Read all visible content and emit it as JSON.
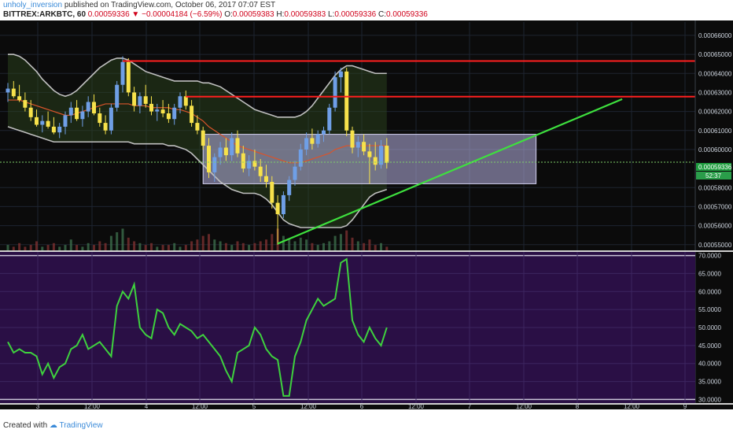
{
  "header": {
    "user": "unholy_inversion",
    "published": "published on TradingView.com, October 06, 2017 07:07 EST",
    "symbol": "BITTREX:ARKBTC, 60",
    "last": "0.00059336",
    "change": "−0.00004184 (−6.59%)",
    "o_label": "O:",
    "o": "0.00059383",
    "h_label": "H:",
    "h": "0.00059383",
    "l_label": "L:",
    "l": "0.00059336",
    "c_label": "C:",
    "c": "0.00059336"
  },
  "footer": {
    "created": "Created with",
    "brand": "TradingView"
  },
  "price_badge": {
    "price": "0.00059336",
    "timer": "52:37"
  },
  "colors": {
    "background": "#0b0b0b",
    "bull": "#6f9fe6",
    "bear": "#f7e24b",
    "bands": "#bfbfbf",
    "basis": "#d9542b",
    "resistance": "#ff1f1f",
    "trend": "#3ee03e",
    "zone": "#b9b4e6",
    "rsi_panel": "#2a0f45",
    "rsi_line": "#3ed13e",
    "price_badge": "#1f9d3f"
  },
  "chart_data": [
    {
      "type": "candlestick",
      "x_ticks": [
        "3",
        "12:00",
        "4",
        "12:00",
        "5",
        "12:00",
        "6",
        "12:00",
        "7",
        "12:00",
        "8",
        "12:00",
        "9"
      ],
      "y_ticks": [
        "0.00066000",
        "0.00065000",
        "0.00064000",
        "0.00063000",
        "0.00062000",
        "0.00061000",
        "0.00060000",
        "0.00058000",
        "0.00057000",
        "0.00056000",
        "0.00055000"
      ],
      "ylim": [
        0.000547,
        0.000667
      ],
      "ohlc": [
        [
          0.00063,
          0.000635,
          0.000625,
          0.000632
        ],
        [
          0.000632,
          0.000636,
          0.000627,
          0.000628
        ],
        [
          0.000628,
          0.000634,
          0.000625,
          0.000626
        ],
        [
          0.000626,
          0.00063,
          0.00062,
          0.000622
        ],
        [
          0.000622,
          0.000626,
          0.000615,
          0.000617
        ],
        [
          0.000617,
          0.000621,
          0.000612,
          0.000613
        ],
        [
          0.000613,
          0.000618,
          0.000609,
          0.000615
        ],
        [
          0.000615,
          0.00062,
          0.000611,
          0.000612
        ],
        [
          0.000612,
          0.000617,
          0.000608,
          0.000609
        ],
        [
          0.000609,
          0.000614,
          0.000606,
          0.000612
        ],
        [
          0.000612,
          0.00062,
          0.000608,
          0.000618
        ],
        [
          0.000618,
          0.000625,
          0.000614,
          0.000622
        ],
        [
          0.000622,
          0.000626,
          0.000615,
          0.000616
        ],
        [
          0.000616,
          0.000623,
          0.000612,
          0.00062
        ],
        [
          0.00062,
          0.000628,
          0.000617,
          0.000625
        ],
        [
          0.000625,
          0.000629,
          0.000618,
          0.000619
        ],
        [
          0.000619,
          0.000622,
          0.000612,
          0.000614
        ],
        [
          0.000614,
          0.000618,
          0.000608,
          0.00061
        ],
        [
          0.00061,
          0.000624,
          0.000608,
          0.000622
        ],
        [
          0.000622,
          0.000636,
          0.00062,
          0.000634
        ],
        [
          0.000634,
          0.000649,
          0.00063,
          0.000646
        ],
        [
          0.000646,
          0.000648,
          0.000628,
          0.00063
        ],
        [
          0.00063,
          0.000633,
          0.00062,
          0.000623
        ],
        [
          0.000623,
          0.00063,
          0.000619,
          0.000628
        ],
        [
          0.000628,
          0.000634,
          0.000622,
          0.000624
        ],
        [
          0.000624,
          0.000628,
          0.000618,
          0.00062
        ],
        [
          0.00062,
          0.000624,
          0.000615,
          0.000621
        ],
        [
          0.000621,
          0.000626,
          0.000617,
          0.000619
        ],
        [
          0.000619,
          0.000624,
          0.000614,
          0.000616
        ],
        [
          0.000616,
          0.000624,
          0.000613,
          0.000622
        ],
        [
          0.000622,
          0.00063,
          0.000619,
          0.000628
        ],
        [
          0.000628,
          0.000631,
          0.000621,
          0.000623
        ],
        [
          0.000623,
          0.000626,
          0.000612,
          0.000614
        ],
        [
          0.000614,
          0.000618,
          0.000608,
          0.00061
        ],
        [
          0.00061,
          0.000612,
          0.0006,
          0.000602
        ],
        [
          0.000602,
          0.000606,
          0.000585,
          0.000588
        ],
        [
          0.000588,
          0.000598,
          0.000583,
          0.000596
        ],
        [
          0.000596,
          0.000604,
          0.000592,
          0.000601
        ],
        [
          0.000601,
          0.000606,
          0.000594,
          0.000597
        ],
        [
          0.000597,
          0.000609,
          0.000594,
          0.000606
        ],
        [
          0.000606,
          0.00061,
          0.000596,
          0.000598
        ],
        [
          0.000598,
          0.000602,
          0.000588,
          0.00059
        ],
        [
          0.00059,
          0.000597,
          0.000586,
          0.000594
        ],
        [
          0.000594,
          0.0006,
          0.000589,
          0.000591
        ],
        [
          0.000591,
          0.000595,
          0.000583,
          0.000586
        ],
        [
          0.000586,
          0.000592,
          0.00058,
          0.000583
        ],
        [
          0.000583,
          0.000586,
          0.000569,
          0.000572
        ],
        [
          0.000572,
          0.000576,
          0.00055,
          0.000566
        ],
        [
          0.000566,
          0.000578,
          0.000564,
          0.000576
        ],
        [
          0.000576,
          0.000586,
          0.000573,
          0.000584
        ],
        [
          0.000584,
          0.000594,
          0.000581,
          0.000591
        ],
        [
          0.000591,
          0.000603,
          0.000589,
          0.0006
        ],
        [
          0.0006,
          0.000609,
          0.000597,
          0.000606
        ],
        [
          0.000606,
          0.000611,
          0.0006,
          0.000603
        ],
        [
          0.000603,
          0.00061,
          0.000601,
          0.000608
        ],
        [
          0.000608,
          0.000612,
          0.000604,
          0.00061
        ],
        [
          0.00061,
          0.000624,
          0.000608,
          0.000622
        ],
        [
          0.000622,
          0.000641,
          0.00062,
          0.000638
        ],
        [
          0.000638,
          0.000643,
          0.00063,
          0.000641
        ],
        [
          0.000641,
          0.000643,
          0.000607,
          0.00061
        ],
        [
          0.00061,
          0.000612,
          0.000598,
          0.000601
        ],
        [
          0.000601,
          0.000607,
          0.000596,
          0.000604
        ],
        [
          0.000604,
          0.000608,
          0.000597,
          0.000599
        ],
        [
          0.000599,
          0.000603,
          0.000582,
          0.000596
        ],
        [
          0.000596,
          0.000604,
          0.000589,
          0.000592
        ],
        [
          0.000592,
          0.000605,
          0.00059,
          0.000602
        ],
        [
          0.000602,
          0.000606,
          0.00059,
          0.000593
        ]
      ],
      "bollinger_upper": [
        0.00065,
        0.00065,
        0.000649,
        0.000647,
        0.000644,
        0.000641,
        0.000637,
        0.000634,
        0.000631,
        0.000629,
        0.000628,
        0.000629,
        0.000631,
        0.000634,
        0.000637,
        0.00064,
        0.000643,
        0.000645,
        0.000647,
        0.000648,
        0.000648,
        0.000647,
        0.000645,
        0.000643,
        0.000641,
        0.00064,
        0.000639,
        0.000638,
        0.000637,
        0.000636,
        0.000636,
        0.000636,
        0.000636,
        0.000636,
        0.000635,
        0.000635,
        0.000634,
        0.000633,
        0.000631,
        0.000629,
        0.000627,
        0.000625,
        0.000623,
        0.000621,
        0.00062,
        0.000619,
        0.000618,
        0.000617,
        0.000617,
        0.000617,
        0.000617,
        0.000618,
        0.00062,
        0.000623,
        0.000627,
        0.000631,
        0.000635,
        0.000639,
        0.000642,
        0.000644,
        0.000644,
        0.000643,
        0.000642,
        0.000641,
        0.00064,
        0.00064,
        0.00064
      ],
      "bollinger_basis": [
        0.000626,
        0.000626,
        0.000626,
        0.000625,
        0.000624,
        0.000623,
        0.000622,
        0.000621,
        0.00062,
        0.000619,
        0.000618,
        0.000618,
        0.000619,
        0.00062,
        0.000621,
        0.000622,
        0.000623,
        0.000624,
        0.000624,
        0.000624,
        0.000624,
        0.000624,
        0.000623,
        0.000623,
        0.000623,
        0.000622,
        0.000622,
        0.000622,
        0.000622,
        0.000621,
        0.000621,
        0.00062,
        0.000619,
        0.000617,
        0.000615,
        0.000612,
        0.00061,
        0.000608,
        0.000606,
        0.000604,
        0.000602,
        0.000601,
        0.0006,
        0.000599,
        0.000598,
        0.000597,
        0.000596,
        0.000595,
        0.000594,
        0.000593,
        0.000593,
        0.000593,
        0.000594,
        0.000595,
        0.000596,
        0.000597,
        0.000598,
        0.0006,
        0.000601,
        0.000602,
        0.000602,
        0.000602,
        0.000602,
        0.000602,
        0.000602,
        0.000602,
        0.000602
      ],
      "bollinger_lower": [
        0.000612,
        0.000611,
        0.00061,
        0.000609,
        0.000608,
        0.000607,
        0.000606,
        0.000605,
        0.000604,
        0.000604,
        0.000604,
        0.000604,
        0.000604,
        0.000604,
        0.000604,
        0.000604,
        0.000604,
        0.000604,
        0.000604,
        0.000604,
        0.000604,
        0.000604,
        0.000603,
        0.000603,
        0.000603,
        0.000603,
        0.000603,
        0.000603,
        0.000602,
        0.000602,
        0.000601,
        0.0006,
        0.000598,
        0.000595,
        0.000592,
        0.000589,
        0.000586,
        0.000583,
        0.000581,
        0.000579,
        0.000578,
        0.000577,
        0.000577,
        0.000577,
        0.000576,
        0.000574,
        0.000571,
        0.000567,
        0.000563,
        0.000561,
        0.00056,
        0.000559,
        0.000559,
        0.000559,
        0.000559,
        0.000559,
        0.000559,
        0.000559,
        0.000559,
        0.00056,
        0.000563,
        0.000567,
        0.000571,
        0.000575,
        0.000577,
        0.000578,
        0.000579
      ],
      "volume": [
        3,
        2,
        4,
        2,
        3,
        5,
        2,
        3,
        4,
        2,
        3,
        6,
        3,
        2,
        4,
        3,
        5,
        4,
        8,
        10,
        12,
        7,
        5,
        4,
        3,
        4,
        2,
        3,
        3,
        4,
        2,
        3,
        5,
        6,
        8,
        9,
        6,
        5,
        4,
        3,
        5,
        4,
        3,
        4,
        5,
        6,
        9,
        12,
        8,
        6,
        5,
        7,
        6,
        4,
        3,
        4,
        5,
        8,
        9,
        11,
        7,
        5,
        4,
        6,
        3,
        4,
        2
      ],
      "resistance_levels": [
        {
          "price": 0.0006465,
          "from_index": 20
        },
        {
          "price": 0.0006278,
          "from_index": 31
        }
      ],
      "trend_line": {
        "from": [
          47,
          0.0005505
        ],
        "to": [
          107,
          0.0006265
        ]
      },
      "zone": {
        "from_index": 34,
        "to_index": 92,
        "top": 0.000608,
        "bottom": 0.000582
      }
    },
    {
      "type": "line",
      "series_role": "rsi",
      "y_ticks": [
        "70.0000",
        "65.0000",
        "60.0000",
        "55.0000",
        "50.0000",
        "45.0000",
        "40.0000",
        "35.0000",
        "30.0000"
      ],
      "ylim": [
        29,
        71
      ],
      "bands": [
        30,
        70
      ],
      "values": [
        46,
        43,
        44,
        43,
        43,
        42,
        37,
        40,
        36,
        39,
        40,
        44,
        45,
        48,
        44,
        45,
        46,
        44,
        42,
        56,
        60,
        58,
        62,
        50,
        48,
        47,
        55,
        54,
        50,
        48,
        51,
        50,
        49,
        47,
        48,
        46,
        44,
        42,
        38,
        35,
        43,
        44,
        45,
        50,
        48,
        44,
        42,
        41,
        31,
        31,
        42,
        46,
        52,
        55,
        58,
        56,
        57,
        58,
        68,
        69,
        52,
        48,
        46,
        50,
        47,
        45,
        50
      ]
    }
  ]
}
